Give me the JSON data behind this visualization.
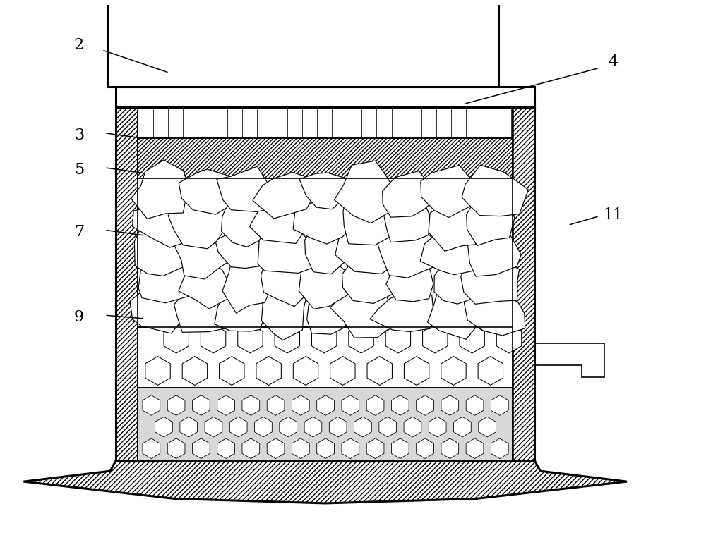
{
  "bg_color": "#ffffff",
  "line_color": "#000000",
  "figsize": [
    10.0,
    7.93
  ],
  "dpi": 100
}
